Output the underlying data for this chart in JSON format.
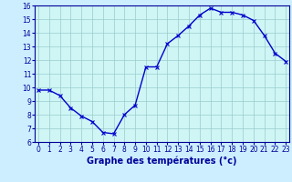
{
  "hours": [
    0,
    1,
    2,
    3,
    4,
    5,
    6,
    7,
    8,
    9,
    10,
    11,
    12,
    13,
    14,
    15,
    16,
    17,
    18,
    19,
    20,
    21,
    22,
    23
  ],
  "temperatures": [
    9.8,
    9.8,
    9.4,
    8.5,
    7.9,
    7.5,
    6.7,
    6.6,
    8.0,
    8.7,
    11.5,
    11.5,
    13.2,
    13.8,
    14.5,
    15.3,
    15.8,
    15.5,
    15.5,
    15.3,
    14.9,
    13.8,
    12.5,
    11.9
  ],
  "line_color": "#0000cc",
  "bg_color": "#cceeff",
  "plot_bg_color": "#cff5f5",
  "grid_color": "#99cccc",
  "xlabel": "Graphe des températures (°c)",
  "xlabel_color": "#000099",
  "tick_color": "#000099",
  "axis_color": "#000099",
  "ylim": [
    6,
    16
  ],
  "xlim": [
    -0.3,
    23.3
  ],
  "yticks": [
    6,
    7,
    8,
    9,
    10,
    11,
    12,
    13,
    14,
    15,
    16
  ],
  "xticks": [
    0,
    1,
    2,
    3,
    4,
    5,
    6,
    7,
    8,
    9,
    10,
    11,
    12,
    13,
    14,
    15,
    16,
    17,
    18,
    19,
    20,
    21,
    22,
    23
  ],
  "tick_fontsize": 5.5,
  "xlabel_fontsize": 7.0,
  "linewidth": 1.0,
  "markersize": 2.5
}
